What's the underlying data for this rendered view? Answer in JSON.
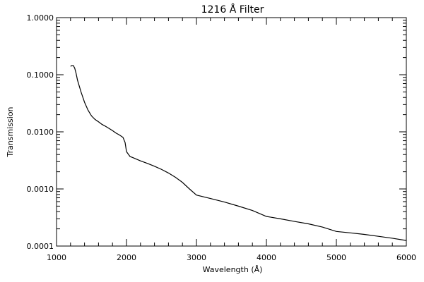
{
  "chart_data": {
    "type": "line",
    "title": "1216 Å Filter",
    "xlabel": "Wavelength (Å)",
    "ylabel": "Transmission",
    "xlim": [
      1000,
      6000
    ],
    "ylim": [
      0.0001,
      1.0
    ],
    "yscale": "log",
    "grid": false,
    "legend": "none",
    "x_ticks": [
      1000,
      2000,
      3000,
      4000,
      5000,
      6000
    ],
    "x_tick_labels": [
      "1000",
      "2000",
      "3000",
      "4000",
      "5000",
      "6000"
    ],
    "y_ticks": [
      0.0001,
      0.001,
      0.01,
      0.1,
      1.0
    ],
    "y_tick_labels": [
      "0.0001",
      "0.0010",
      "0.0100",
      "0.1000",
      "1.0000"
    ],
    "series": [
      {
        "color": "#000000",
        "x": [
          1200,
          1220,
          1240,
          1260,
          1280,
          1300,
          1350,
          1400,
          1450,
          1500,
          1550,
          1600,
          1650,
          1700,
          1750,
          1800,
          1850,
          1900,
          1950,
          1980,
          2000,
          2050,
          2100,
          2200,
          2300,
          2400,
          2500,
          2600,
          2700,
          2800,
          2900,
          3000,
          3200,
          3400,
          3600,
          3800,
          4000,
          4200,
          4400,
          4600,
          4800,
          5000,
          5200,
          5400,
          5600,
          5800,
          6000
        ],
        "y": [
          0.14,
          0.145,
          0.145,
          0.13,
          0.105,
          0.08,
          0.05,
          0.033,
          0.024,
          0.019,
          0.0165,
          0.015,
          0.0135,
          0.0125,
          0.0115,
          0.0105,
          0.0095,
          0.0088,
          0.008,
          0.0065,
          0.0045,
          0.0037,
          0.0035,
          0.0031,
          0.0028,
          0.0025,
          0.0022,
          0.0019,
          0.0016,
          0.0013,
          0.001,
          0.00078,
          0.00068,
          0.00059,
          0.0005,
          0.00042,
          0.00033,
          0.0003,
          0.00027,
          0.000245,
          0.000215,
          0.00018,
          0.00017,
          0.00016,
          0.000148,
          0.000137,
          0.000125
        ]
      }
    ]
  }
}
